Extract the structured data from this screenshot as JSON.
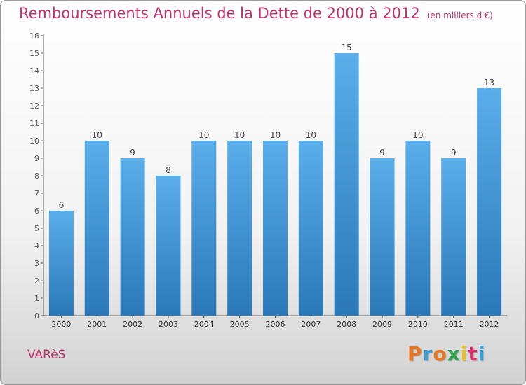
{
  "title": "Remboursements Annuels de la Dette de 2000 à 2012",
  "subtitle": "(en milliers d'€)",
  "commune": "VARèS",
  "logo": {
    "text": "Proxiti",
    "colors": [
      "#e87722",
      "#3a9bd5",
      "#e87722",
      "#2fa84f",
      "#e8c21e",
      "#d6336c",
      "#3a9bd5"
    ]
  },
  "colors": {
    "title": "#c0306a",
    "bar_top": "#5aaeea",
    "bar_bottom": "#2a78b8",
    "axis": "#555555"
  },
  "chart_data": {
    "type": "bar",
    "categories": [
      "2000",
      "2001",
      "2002",
      "2003",
      "2004",
      "2005",
      "2006",
      "2007",
      "2008",
      "2009",
      "2010",
      "2011",
      "2012"
    ],
    "values": [
      6,
      10,
      9,
      8,
      10,
      10,
      10,
      10,
      15,
      9,
      10,
      9,
      13
    ],
    "title": "Remboursements Annuels de la Dette de 2000 à 2012",
    "subtitle": "(en milliers d'€)",
    "xlabel": "",
    "ylabel": "",
    "ylim": [
      0,
      16
    ],
    "yticks": [
      0,
      1,
      2,
      3,
      4,
      5,
      6,
      7,
      8,
      9,
      10,
      11,
      12,
      13,
      14,
      15,
      16
    ],
    "grid": false,
    "data_labels": true
  }
}
